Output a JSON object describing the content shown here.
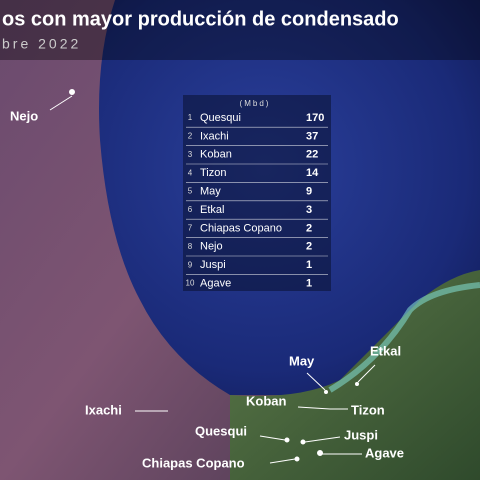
{
  "header": {
    "title": "os con mayor producción de condensado",
    "subtitle": "bre 2022"
  },
  "table": {
    "unit": "(Mbd)",
    "rows": [
      [
        1,
        "Quesqui",
        170
      ],
      [
        2,
        "Ixachi",
        37
      ],
      [
        3,
        "Koban",
        22
      ],
      [
        4,
        "Tizon",
        14
      ],
      [
        5,
        "May",
        9
      ],
      [
        6,
        "Etkal",
        3
      ],
      [
        7,
        "Chiapas Copano",
        2
      ],
      [
        8,
        "Nejo",
        2
      ],
      [
        9,
        "Juspi",
        1
      ],
      [
        10,
        "Agave",
        1
      ]
    ]
  },
  "map_labels": [
    "Nejo",
    "May",
    "Etkal",
    "Koban",
    "Tizon",
    "Ixachi",
    "Quesqui",
    "Juspi",
    "Chiapas Copano",
    "Agave"
  ]
}
